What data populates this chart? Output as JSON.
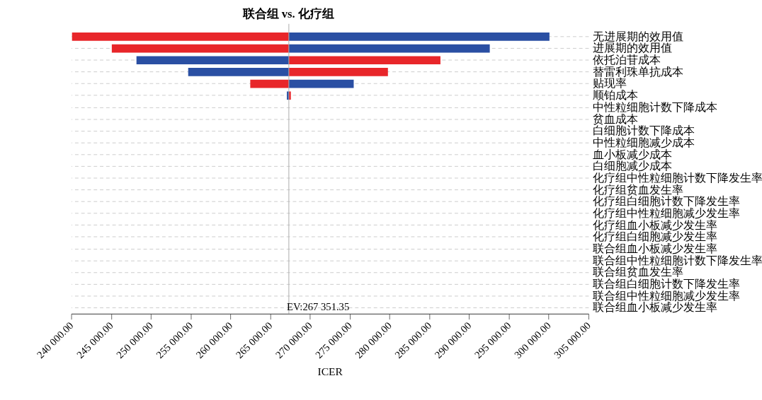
{
  "chart_data": {
    "type": "bar",
    "orientation": "horizontal",
    "title": "联合组  vs. 化疗组",
    "xlabel": "ICER",
    "categories": [
      "无进展期的效用值",
      "进展期的效用值",
      "依托泊苷成本",
      "替雷利珠单抗成本",
      "贴现率",
      "顺铂成本",
      "中性粒细胞计数下降成本",
      "贫血成本",
      "白细胞计数下降成本",
      "中性粒细胞减少成本",
      "血小板减少成本",
      "白细胞减少成本",
      "化疗组中性粒细胞计数下降发生率",
      "化疗组贫血发生率",
      "化疗组白细胞计数下降发生率",
      "化疗组中性粒细胞减少发生率",
      "化疗组血小板减少发生率",
      "化疗组白细胞减少发生率",
      "联合组血小板减少发生率",
      "联合组中性粒细胞计数下降发生率",
      "联合组贫血发生率",
      "联合组白细胞计数下降发生率",
      "联合组中性粒细胞减少发生率",
      "联合组血小板减少发生率"
    ],
    "series": [
      {
        "color": "#e8262a",
        "base": [
          240100,
          245100,
          267351.35,
          267351.35,
          262500,
          267351.35,
          null,
          null,
          null,
          null,
          null,
          null,
          null,
          null,
          null,
          null,
          null,
          null,
          null,
          null,
          null,
          null,
          null,
          null
        ],
        "values": [
          27250,
          22250,
          19050,
          12450,
          4850,
          250,
          null,
          null,
          null,
          null,
          null,
          null,
          null,
          null,
          null,
          null,
          null,
          null,
          null,
          null,
          null,
          null,
          null,
          null
        ]
      },
      {
        "color": "#2a4fa3",
        "base": [
          267351.35,
          267351.35,
          248200,
          254700,
          267351.35,
          267100,
          null,
          null,
          null,
          null,
          null,
          null,
          null,
          null,
          null,
          null,
          null,
          null,
          null,
          null,
          null,
          null,
          null,
          null
        ],
        "values": [
          32750,
          25250,
          19150,
          12650,
          8150,
          250,
          null,
          null,
          null,
          null,
          null,
          null,
          null,
          null,
          null,
          null,
          null,
          null,
          null,
          null,
          null,
          null,
          null,
          null
        ]
      }
    ],
    "xlim": [
      240000,
      305000
    ],
    "xticks": [
      {
        "value": 240000,
        "label": "240 000.00"
      },
      {
        "value": 245000,
        "label": "245 000.00"
      },
      {
        "value": 250000,
        "label": "250 000.00"
      },
      {
        "value": 255000,
        "label": "255 000.00"
      },
      {
        "value": 260000,
        "label": "260 000.00"
      },
      {
        "value": 265000,
        "label": "265 000.00"
      },
      {
        "value": 270000,
        "label": "270 000.00"
      },
      {
        "value": 275000,
        "label": "275 000.00"
      },
      {
        "value": 280000,
        "label": "280 000.00"
      },
      {
        "value": 285000,
        "label": "285 000.00"
      },
      {
        "value": 290000,
        "label": "290 000.00"
      },
      {
        "value": 295000,
        "label": "295 000.00"
      },
      {
        "value": 300000,
        "label": "300 000.00"
      },
      {
        "value": 305000,
        "label": "305 000.00"
      }
    ],
    "ref_lines": [
      {
        "axis": "x",
        "value": 267351.35,
        "label": "EV:267 351.35",
        "color": "#aaaaaa"
      }
    ],
    "grid": "y",
    "line_style": "dashed"
  }
}
